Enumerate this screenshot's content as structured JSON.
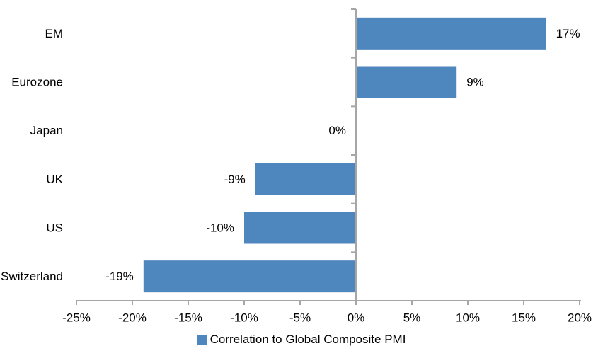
{
  "chart_data": {
    "type": "bar",
    "orientation": "horizontal",
    "title": "",
    "categories": [
      "EM",
      "Eurozone",
      "Japan",
      "UK",
      "US",
      "Switzerland"
    ],
    "values": [
      17,
      9,
      0,
      -9,
      -10,
      -19
    ],
    "value_labels": [
      "17%",
      "9%",
      "0%",
      "-9%",
      "-10%",
      "-19%"
    ],
    "legend": "Correlation to Global Composite PMI",
    "legend_position": "bottom-center",
    "x_axis": {
      "min": -25,
      "max": 20,
      "step": 5,
      "tick_labels": [
        "-25%",
        "-20%",
        "-15%",
        "-10%",
        "-5%",
        "0%",
        "5%",
        "10%",
        "15%",
        "20%"
      ]
    },
    "grid": "off",
    "colors": {
      "bar": "#4E86BE",
      "axis": "#A6A6A6",
      "text": "#000000",
      "background": "#FFFFFF"
    }
  }
}
